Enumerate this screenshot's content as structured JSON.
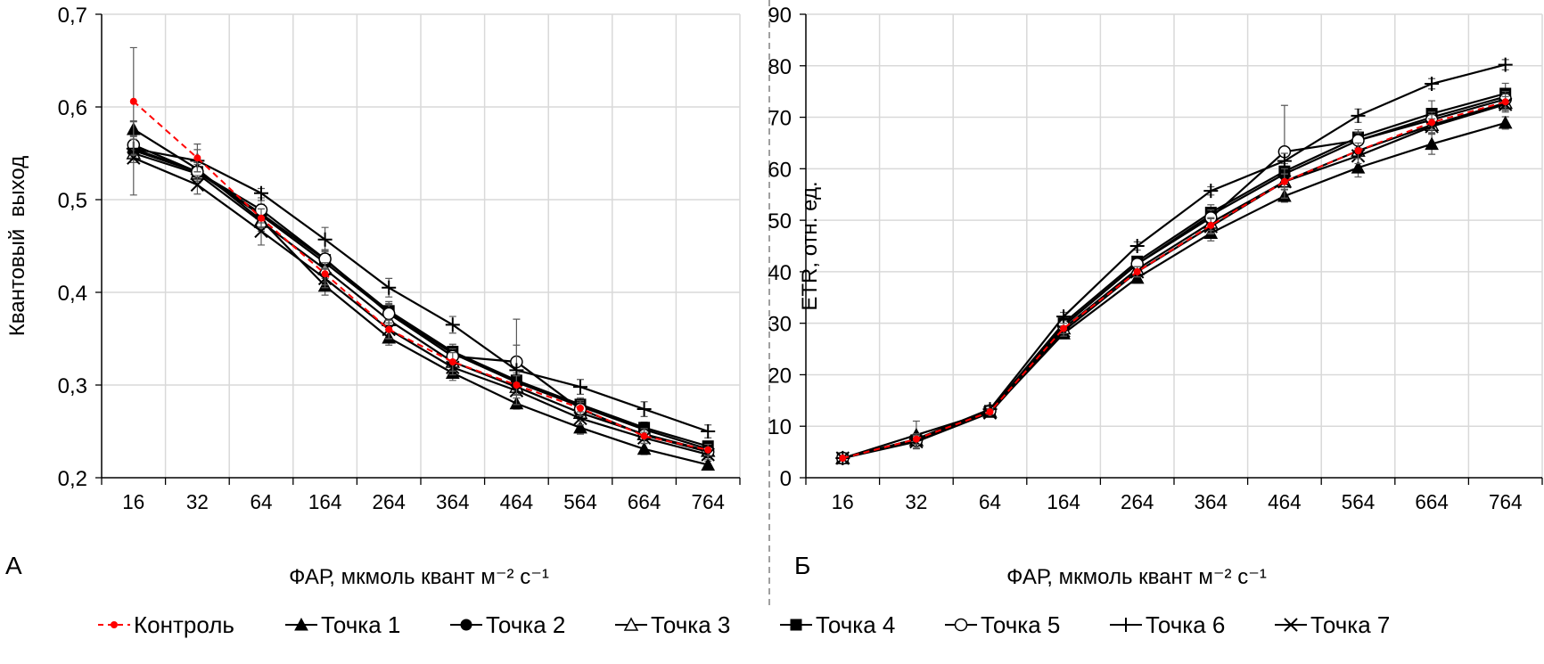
{
  "chart_data": [
    {
      "type": "line",
      "panel_label": "А",
      "title": "",
      "xlabel": "ФАР, мкмоль квант м⁻² с⁻¹",
      "ylabel": "Квантовый  выход",
      "categories": [
        "16",
        "32",
        "64",
        "164",
        "264",
        "364",
        "464",
        "564",
        "664",
        "764"
      ],
      "ylim": [
        0.2,
        0.7
      ],
      "yticks": [
        "0,2",
        "0,3",
        "0,4",
        "0,5",
        "0,6",
        "0,7"
      ],
      "ytick_values": [
        0.2,
        0.3,
        0.4,
        0.5,
        0.6,
        0.7
      ],
      "grid": true,
      "series": [
        {
          "name": "Контроль",
          "marker": "dot",
          "color": "#ff0000",
          "dashed": true,
          "values": [
            0.606,
            0.545,
            0.48,
            0.42,
            0.36,
            0.325,
            0.3,
            0.275,
            0.245,
            0.23
          ],
          "err": [
            0.058,
            0.015,
            0.01,
            0.012,
            0.01,
            0.01,
            0.01,
            0.008,
            0.008,
            0.006
          ]
        },
        {
          "name": "Точка 1",
          "marker": "triangle-filled",
          "color": "#000000",
          "dashed": false,
          "values": [
            0.576,
            0.533,
            0.478,
            0.407,
            0.351,
            0.313,
            0.28,
            0.254,
            0.231,
            0.214
          ],
          "err": [
            0.008,
            0.01,
            0.01,
            0.01,
            0.008,
            0.008,
            0.006,
            0.007,
            0.006,
            0.004
          ]
        },
        {
          "name": "Точка 2",
          "marker": "circle-filled",
          "color": "#000000",
          "dashed": false,
          "values": [
            0.553,
            0.53,
            0.483,
            0.432,
            0.378,
            0.334,
            0.303,
            0.277,
            0.252,
            0.231
          ],
          "err": [
            0.01,
            0.01,
            0.01,
            0.01,
            0.01,
            0.008,
            0.008,
            0.007,
            0.006,
            0.005
          ]
        },
        {
          "name": "Точка 3",
          "marker": "triangle-open",
          "color": "#000000",
          "dashed": false,
          "values": [
            0.55,
            0.528,
            0.476,
            0.425,
            0.37,
            0.325,
            0.298,
            0.27,
            0.247,
            0.229
          ],
          "err": [
            0.01,
            0.01,
            0.01,
            0.01,
            0.01,
            0.008,
            0.008,
            0.007,
            0.006,
            0.005
          ]
        },
        {
          "name": "Точка 4",
          "marker": "square-filled",
          "color": "#000000",
          "dashed": false,
          "values": [
            0.555,
            0.53,
            0.485,
            0.435,
            0.38,
            0.336,
            0.305,
            0.279,
            0.254,
            0.234
          ],
          "err": [
            0.01,
            0.01,
            0.01,
            0.01,
            0.01,
            0.008,
            0.008,
            0.007,
            0.006,
            0.005
          ]
        },
        {
          "name": "Точка 5",
          "marker": "circle-open",
          "color": "#000000",
          "dashed": false,
          "values": [
            0.559,
            0.53,
            0.489,
            0.436,
            0.377,
            0.331,
            0.325,
            0.274,
            0.246,
            0.228
          ],
          "err": [
            0.01,
            0.01,
            0.01,
            0.01,
            0.01,
            0.008,
            0.046,
            0.007,
            0.006,
            0.005
          ]
        },
        {
          "name": "Точка 6",
          "marker": "plus",
          "color": "#000000",
          "dashed": false,
          "values": [
            0.555,
            0.542,
            0.507,
            0.457,
            0.405,
            0.365,
            0.316,
            0.298,
            0.274,
            0.25
          ],
          "err": [
            0.01,
            0.012,
            0.005,
            0.013,
            0.01,
            0.009,
            0.027,
            0.008,
            0.008,
            0.007
          ]
        },
        {
          "name": "Точка 7",
          "marker": "x",
          "color": "#000000",
          "dashed": false,
          "values": [
            0.545,
            0.516,
            0.466,
            0.415,
            0.36,
            0.319,
            0.294,
            0.264,
            0.243,
            0.225
          ],
          "err": [
            0.04,
            0.01,
            0.015,
            0.01,
            0.01,
            0.008,
            0.008,
            0.007,
            0.006,
            0.005
          ]
        }
      ]
    },
    {
      "type": "line",
      "panel_label": "Б",
      "title": "",
      "xlabel": "ФАР, мкмоль квант м⁻² с⁻¹",
      "ylabel": "ETR, отн. ед.",
      "categories": [
        "16",
        "32",
        "64",
        "164",
        "264",
        "364",
        "464",
        "564",
        "664",
        "764"
      ],
      "ylim": [
        0,
        90
      ],
      "yticks": [
        "0",
        "10",
        "20",
        "30",
        "40",
        "50",
        "60",
        "70",
        "80",
        "90"
      ],
      "ytick_values": [
        0,
        10,
        20,
        30,
        40,
        50,
        60,
        70,
        80,
        90
      ],
      "grid": true,
      "series": [
        {
          "name": "Контроль",
          "marker": "dot",
          "color": "#ff0000",
          "dashed": true,
          "values": [
            3.8,
            7.5,
            12.8,
            29.0,
            40.0,
            49.0,
            57.5,
            63.5,
            69.0,
            73.0
          ],
          "err": [
            0.3,
            1.0,
            0.5,
            1.0,
            1.0,
            1.5,
            1.5,
            1.5,
            1.5,
            1.5
          ]
        },
        {
          "name": "Точка 1",
          "marker": "triangle-filled",
          "color": "#000000",
          "dashed": false,
          "values": [
            3.8,
            8.3,
            12.8,
            28.0,
            38.8,
            47.5,
            54.7,
            60.2,
            64.8,
            68.9
          ],
          "err": [
            0.3,
            2.7,
            0.5,
            1.0,
            1.0,
            1.5,
            1.2,
            1.8,
            2.0,
            1.2
          ]
        },
        {
          "name": "Точка 2",
          "marker": "circle-filled",
          "color": "#000000",
          "dashed": false,
          "values": [
            3.8,
            7.5,
            13.0,
            29.5,
            41.5,
            51.0,
            59.0,
            65.5,
            70.0,
            74.0
          ],
          "err": [
            0.3,
            1.0,
            0.5,
            1.0,
            1.0,
            1.5,
            1.5,
            1.5,
            1.5,
            1.5
          ]
        },
        {
          "name": "Точка 3",
          "marker": "triangle-open",
          "color": "#000000",
          "dashed": false,
          "values": [
            3.8,
            7.3,
            12.8,
            29.0,
            40.5,
            49.5,
            57.5,
            63.5,
            68.5,
            72.8
          ],
          "err": [
            0.3,
            1.0,
            0.5,
            1.0,
            1.0,
            1.5,
            1.5,
            1.5,
            1.5,
            1.5
          ]
        },
        {
          "name": "Точка 4",
          "marker": "square-filled",
          "color": "#000000",
          "dashed": false,
          "values": [
            3.8,
            7.3,
            13.0,
            30.0,
            42.0,
            51.5,
            59.5,
            66.1,
            70.7,
            74.6
          ],
          "err": [
            0.3,
            1.0,
            0.5,
            1.0,
            1.0,
            1.5,
            1.5,
            1.5,
            2.5,
            2.0
          ]
        },
        {
          "name": "Точка 5",
          "marker": "circle-open",
          "color": "#000000",
          "dashed": false,
          "values": [
            3.8,
            7.2,
            13.0,
            29.5,
            41.5,
            50.5,
            63.3,
            65.5,
            69.5,
            73.5
          ],
          "err": [
            0.3,
            1.0,
            0.5,
            1.0,
            1.0,
            1.5,
            9.0,
            1.5,
            1.5,
            1.5
          ]
        },
        {
          "name": "Точка 6",
          "marker": "plus",
          "color": "#000000",
          "dashed": false,
          "values": [
            3.8,
            7.5,
            13.3,
            31.3,
            45.0,
            55.7,
            61.5,
            70.3,
            76.5,
            80.2
          ],
          "err": [
            0.3,
            1.0,
            0.5,
            0.8,
            0.8,
            0.8,
            1.5,
            1.3,
            1.0,
            1.0
          ]
        },
        {
          "name": "Точка 7",
          "marker": "x",
          "color": "#000000",
          "dashed": false,
          "values": [
            3.8,
            7.0,
            12.6,
            28.5,
            40.0,
            48.8,
            57.5,
            62.5,
            68.2,
            72.5
          ],
          "err": [
            0.3,
            1.2,
            0.5,
            1.0,
            1.0,
            1.5,
            1.5,
            1.5,
            1.5,
            1.5
          ]
        }
      ]
    }
  ],
  "legend": {
    "position": "bottom",
    "items": [
      "Контроль",
      "Точка 1",
      "Точка 2",
      "Точка 3",
      "Точка 4",
      "Точка 5",
      "Точка 6",
      "Точка 7"
    ]
  }
}
